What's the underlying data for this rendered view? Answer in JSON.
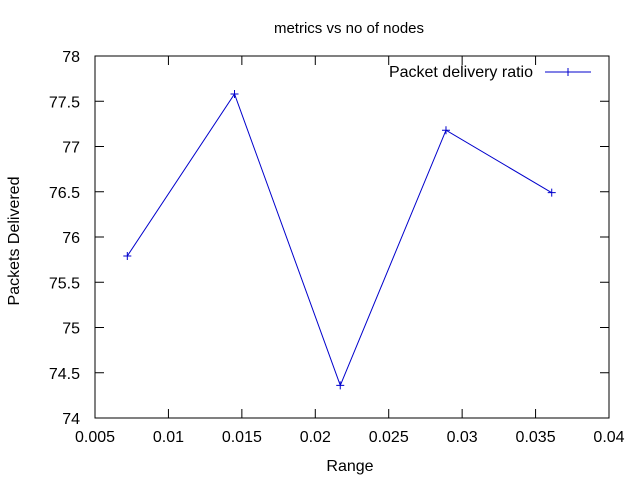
{
  "chart_data": {
    "type": "line",
    "title": "metrics vs no of nodes",
    "xlabel": "Range",
    "ylabel": "Packets Delivered",
    "xlim": [
      0.005,
      0.04
    ],
    "ylim": [
      74,
      78
    ],
    "xticks": [
      0.005,
      0.01,
      0.015,
      0.02,
      0.025,
      0.03,
      0.035,
      0.04
    ],
    "xtick_labels": [
      "0.005",
      "0.01",
      "0.015",
      "0.02",
      "0.025",
      "0.03",
      "0.035",
      "0.04"
    ],
    "yticks": [
      74,
      74.5,
      75,
      75.5,
      76,
      76.5,
      77,
      77.5,
      78
    ],
    "ytick_labels": [
      "74",
      "74.5",
      "75",
      "75.5",
      "76",
      "76.5",
      "77",
      "77.5",
      "78"
    ],
    "grid": false,
    "legend_position": "top-right",
    "series": [
      {
        "name": "Packet delivery ratio",
        "color": "#0000cc",
        "marker": "plus",
        "x": [
          0.0072,
          0.0145,
          0.0217,
          0.0289,
          0.0361
        ],
        "y": [
          75.79,
          77.58,
          74.36,
          77.18,
          76.49
        ]
      }
    ]
  }
}
